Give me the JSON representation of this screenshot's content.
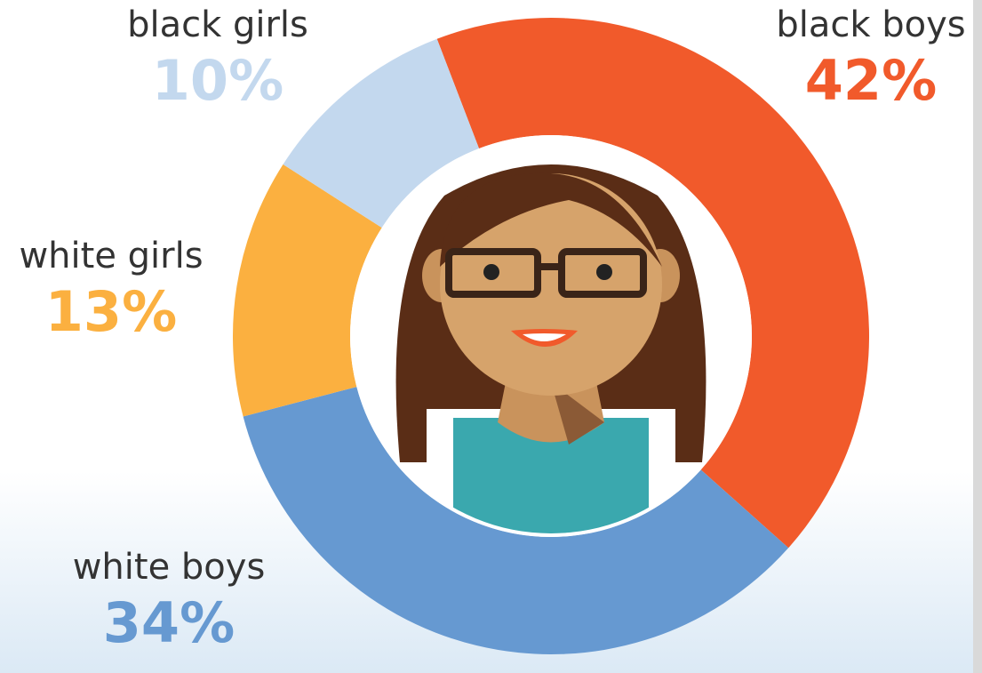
{
  "chart_data": {
    "type": "pie",
    "donut": true,
    "categories": [
      "black boys",
      "white boys",
      "white girls",
      "black girls"
    ],
    "values": [
      42,
      34,
      13,
      10
    ],
    "value_labels": [
      "42%",
      "34%",
      "13%",
      "10%"
    ],
    "colors": [
      "#f15a2b",
      "#6699d1",
      "#fbb040",
      "#c3d8ee"
    ]
  }
}
